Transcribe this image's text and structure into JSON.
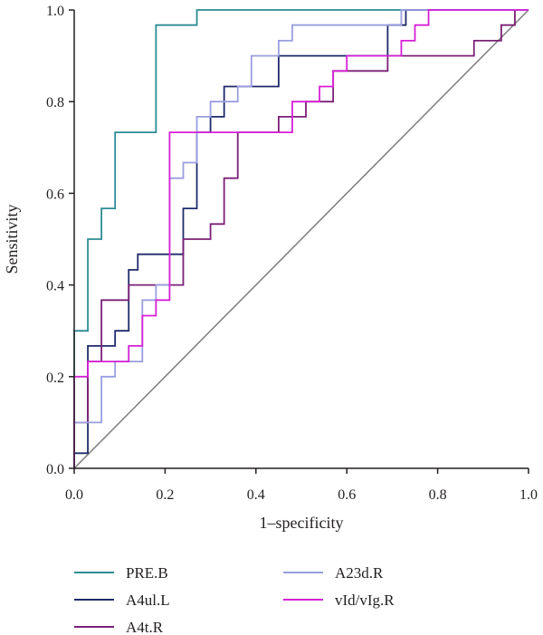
{
  "chart_data": {
    "type": "line",
    "xlabel": "1–specificity",
    "ylabel": "Sensitivity",
    "xlim": [
      0,
      1
    ],
    "ylim": [
      0,
      1
    ],
    "x_ticks": [
      "0.0",
      "0.2",
      "0.4",
      "0.6",
      "0.8",
      "1.0"
    ],
    "y_ticks": [
      "0.0",
      "0.2",
      "0.4",
      "0.6",
      "0.8",
      "1.0"
    ],
    "grid": false,
    "legend_position": "bottom",
    "reference_line": {
      "from": [
        0,
        0
      ],
      "to": [
        1,
        1
      ],
      "color": "#7d7d7d"
    },
    "series": [
      {
        "name": "PRE.B",
        "color": "#2b8c93",
        "points": [
          [
            0,
            0
          ],
          [
            0,
            0.3
          ],
          [
            0.03,
            0.3
          ],
          [
            0.03,
            0.5
          ],
          [
            0.06,
            0.5
          ],
          [
            0.06,
            0.567
          ],
          [
            0.09,
            0.567
          ],
          [
            0.09,
            0.733
          ],
          [
            0.18,
            0.733
          ],
          [
            0.18,
            0.967
          ],
          [
            0.27,
            0.967
          ],
          [
            0.27,
            1.0
          ],
          [
            1.0,
            1.0
          ]
        ]
      },
      {
        "name": "A4ul.L",
        "color": "#1f2a6b",
        "points": [
          [
            0,
            0
          ],
          [
            0,
            0.033
          ],
          [
            0.03,
            0.033
          ],
          [
            0.03,
            0.267
          ],
          [
            0.09,
            0.267
          ],
          [
            0.09,
            0.3
          ],
          [
            0.12,
            0.3
          ],
          [
            0.12,
            0.433
          ],
          [
            0.14,
            0.433
          ],
          [
            0.14,
            0.467
          ],
          [
            0.24,
            0.467
          ],
          [
            0.24,
            0.567
          ],
          [
            0.27,
            0.567
          ],
          [
            0.27,
            0.733
          ],
          [
            0.3,
            0.733
          ],
          [
            0.3,
            0.767
          ],
          [
            0.33,
            0.767
          ],
          [
            0.33,
            0.833
          ],
          [
            0.45,
            0.833
          ],
          [
            0.45,
            0.9
          ],
          [
            0.69,
            0.9
          ],
          [
            0.69,
            0.967
          ],
          [
            0.73,
            0.967
          ],
          [
            0.73,
            1.0
          ],
          [
            1.0,
            1.0
          ]
        ]
      },
      {
        "name": "A4t.R",
        "color": "#7b2077",
        "points": [
          [
            0,
            0
          ],
          [
            0,
            0.1
          ],
          [
            0.03,
            0.1
          ],
          [
            0.03,
            0.233
          ],
          [
            0.06,
            0.233
          ],
          [
            0.06,
            0.367
          ],
          [
            0.12,
            0.367
          ],
          [
            0.12,
            0.4
          ],
          [
            0.24,
            0.4
          ],
          [
            0.24,
            0.5
          ],
          [
            0.3,
            0.5
          ],
          [
            0.3,
            0.533
          ],
          [
            0.33,
            0.533
          ],
          [
            0.33,
            0.633
          ],
          [
            0.36,
            0.633
          ],
          [
            0.36,
            0.733
          ],
          [
            0.45,
            0.733
          ],
          [
            0.45,
            0.767
          ],
          [
            0.51,
            0.767
          ],
          [
            0.51,
            0.8
          ],
          [
            0.57,
            0.8
          ],
          [
            0.57,
            0.867
          ],
          [
            0.69,
            0.867
          ],
          [
            0.69,
            0.9
          ],
          [
            0.88,
            0.9
          ],
          [
            0.88,
            0.933
          ],
          [
            0.94,
            0.933
          ],
          [
            0.94,
            0.967
          ],
          [
            0.97,
            0.967
          ],
          [
            0.97,
            1.0
          ],
          [
            1.0,
            1.0
          ]
        ]
      },
      {
        "name": "A23d.R",
        "color": "#9a9ee0",
        "points": [
          [
            0,
            0
          ],
          [
            0,
            0.1
          ],
          [
            0.06,
            0.1
          ],
          [
            0.06,
            0.2
          ],
          [
            0.09,
            0.2
          ],
          [
            0.09,
            0.233
          ],
          [
            0.15,
            0.233
          ],
          [
            0.15,
            0.367
          ],
          [
            0.18,
            0.367
          ],
          [
            0.18,
            0.4
          ],
          [
            0.21,
            0.4
          ],
          [
            0.21,
            0.633
          ],
          [
            0.24,
            0.633
          ],
          [
            0.24,
            0.667
          ],
          [
            0.27,
            0.667
          ],
          [
            0.27,
            0.767
          ],
          [
            0.3,
            0.767
          ],
          [
            0.3,
            0.8
          ],
          [
            0.36,
            0.8
          ],
          [
            0.36,
            0.833
          ],
          [
            0.39,
            0.833
          ],
          [
            0.39,
            0.9
          ],
          [
            0.45,
            0.9
          ],
          [
            0.45,
            0.933
          ],
          [
            0.48,
            0.933
          ],
          [
            0.48,
            0.967
          ],
          [
            0.72,
            0.967
          ],
          [
            0.72,
            1.0
          ],
          [
            1.0,
            1.0
          ]
        ]
      },
      {
        "name": "vId/vIg.R",
        "color": "#d620d6",
        "points": [
          [
            0,
            0
          ],
          [
            0,
            0.2
          ],
          [
            0.03,
            0.2
          ],
          [
            0.03,
            0.233
          ],
          [
            0.12,
            0.233
          ],
          [
            0.12,
            0.267
          ],
          [
            0.15,
            0.267
          ],
          [
            0.15,
            0.333
          ],
          [
            0.18,
            0.333
          ],
          [
            0.18,
            0.367
          ],
          [
            0.21,
            0.367
          ],
          [
            0.21,
            0.733
          ],
          [
            0.48,
            0.733
          ],
          [
            0.48,
            0.8
          ],
          [
            0.54,
            0.8
          ],
          [
            0.54,
            0.833
          ],
          [
            0.57,
            0.833
          ],
          [
            0.57,
            0.867
          ],
          [
            0.6,
            0.867
          ],
          [
            0.6,
            0.9
          ],
          [
            0.72,
            0.9
          ],
          [
            0.72,
            0.933
          ],
          [
            0.75,
            0.933
          ],
          [
            0.75,
            0.967
          ],
          [
            0.78,
            0.967
          ],
          [
            0.78,
            1.0
          ],
          [
            1.0,
            1.0
          ]
        ]
      }
    ]
  }
}
